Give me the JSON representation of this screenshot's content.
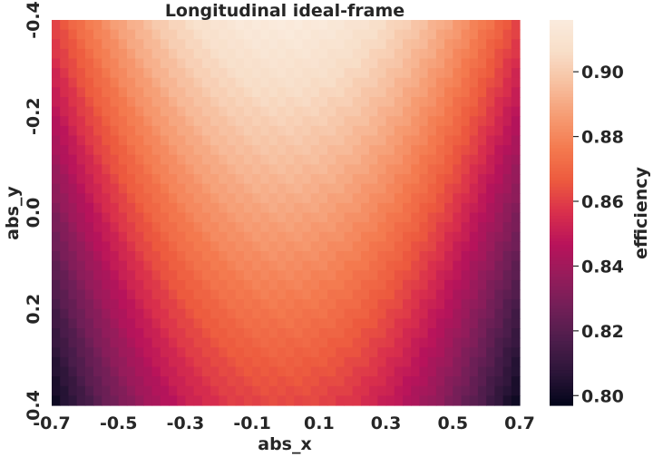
{
  "chart_data": {
    "type": "heatmap",
    "title": "Longitudinal ideal-frame",
    "xlabel": "abs_x",
    "ylabel": "abs_y",
    "colorbar_label": "efficiency",
    "x_range": [
      -0.7,
      0.7
    ],
    "y_range": [
      -0.4,
      0.4
    ],
    "y_direction": "top-to-bottom",
    "grid_cols": 56,
    "grid_rows": 40,
    "x_ticks": [
      "-0.7",
      "-0.5",
      "-0.3",
      "-0.1",
      "0.1",
      "0.3",
      "0.5",
      "0.7"
    ],
    "y_ticks": [
      "-0.4",
      "-0.2",
      "0.0",
      "0.2",
      "0.4"
    ],
    "colorbar_ticks": [
      "0.80",
      "0.82",
      "0.84",
      "0.86",
      "0.88",
      "0.90"
    ],
    "value_range": [
      0.797,
      0.916
    ],
    "model": {
      "description": "efficiency(x,y) = peak - a(y)*x^2 + b*y, read from color",
      "peak_at_top_center": 0.916,
      "center_value": 0.888,
      "bottom_center_value": 0.862,
      "corner_top": 0.861,
      "corner_bottom": 0.797
    },
    "colormap": "rocket",
    "colormap_stops": [
      "#03051a",
      "#2b1538",
      "#4c1d4b",
      "#701f57",
      "#951c5b",
      "#b8135b",
      "#d92f4c",
      "#ed5a3e",
      "#f47a4f",
      "#f69c73",
      "#f7bf9f",
      "#f8dec8",
      "#faebdd"
    ]
  }
}
